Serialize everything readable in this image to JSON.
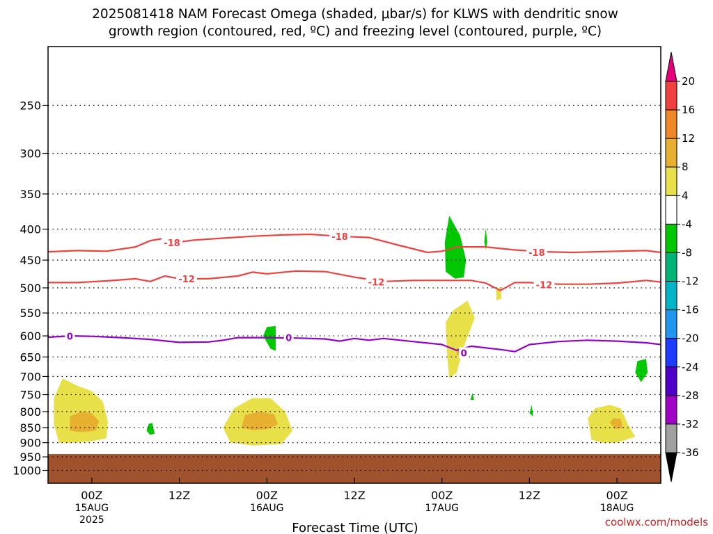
{
  "title_line1": "2025081418 NAM Forecast Omega (shaded, μbar/s) for KLWS with dendritic snow",
  "title_line2": "growth region (contoured, red, ºC) and freezing level (contoured, purple, ºC)",
  "credit": "coolwx.com/models",
  "chart_data": {
    "type": "time-height cross section",
    "xlabel": "Forecast Time (UTC)",
    "x_ticks": [
      {
        "hour": 6,
        "label": "00Z",
        "date": "15AUG",
        "year": "2025"
      },
      {
        "hour": 18,
        "label": "12Z",
        "date": "",
        "year": ""
      },
      {
        "hour": 30,
        "label": "00Z",
        "date": "16AUG",
        "year": ""
      },
      {
        "hour": 42,
        "label": "12Z",
        "date": "",
        "year": ""
      },
      {
        "hour": 54,
        "label": "00Z",
        "date": "17AUG",
        "year": ""
      },
      {
        "hour": 66,
        "label": "12Z",
        "date": "",
        "year": ""
      },
      {
        "hour": 78,
        "label": "00Z",
        "date": "18AUG",
        "year": ""
      }
    ],
    "xlim": [
      0,
      84
    ],
    "y_ticks": [
      250,
      300,
      350,
      400,
      450,
      500,
      550,
      600,
      650,
      700,
      750,
      800,
      850,
      900,
      950,
      1000
    ],
    "ylim": [
      200,
      1050
    ],
    "y_scale": "log pressure (hPa)",
    "ground_level_hpa": 940,
    "colorbar": {
      "unit": "μbar/s",
      "labels": [
        "20",
        "16",
        "12",
        "8",
        "4",
        "-4",
        "-8",
        "-12",
        "-16",
        "-20",
        "-24",
        "-28",
        "-32",
        "-36"
      ],
      "colors": [
        "#e8007a",
        "#f04040",
        "#f08828",
        "#e8b030",
        "#e8e048",
        "#ffffff",
        "#00c800",
        "#00b478",
        "#00b4c8",
        "#1e96f0",
        "#1e3cff",
        "#5000c8",
        "#a000c8",
        "#a0a0a0",
        "#000000"
      ]
    },
    "contours": [
      {
        "name": "-18",
        "kind": "dendritic",
        "color": "#f04040",
        "points": [
          [
            0,
            436
          ],
          [
            4,
            434
          ],
          [
            8,
            435
          ],
          [
            12,
            428
          ],
          [
            14,
            418
          ],
          [
            16,
            414
          ],
          [
            18,
            420
          ],
          [
            20,
            417
          ],
          [
            24,
            414
          ],
          [
            28,
            411
          ],
          [
            32,
            409
          ],
          [
            36,
            408
          ],
          [
            40,
            411
          ],
          [
            44,
            413
          ],
          [
            48,
            425
          ],
          [
            52,
            437
          ],
          [
            54,
            435
          ],
          [
            56,
            428
          ],
          [
            60,
            428
          ],
          [
            64,
            433
          ],
          [
            68,
            436
          ],
          [
            72,
            437
          ],
          [
            78,
            435
          ],
          [
            82,
            434
          ],
          [
            84,
            437
          ]
        ],
        "labels": [
          [
            17,
            421
          ],
          [
            40,
            411
          ],
          [
            67,
            437
          ]
        ]
      },
      {
        "name": "-12",
        "kind": "dendritic",
        "color": "#f04040",
        "points": [
          [
            0,
            490
          ],
          [
            4,
            490
          ],
          [
            8,
            487
          ],
          [
            12,
            483
          ],
          [
            14,
            488
          ],
          [
            16,
            478
          ],
          [
            18,
            483
          ],
          [
            22,
            483
          ],
          [
            26,
            478
          ],
          [
            28,
            471
          ],
          [
            30,
            474
          ],
          [
            34,
            469
          ],
          [
            38,
            470
          ],
          [
            42,
            480
          ],
          [
            46,
            488
          ],
          [
            50,
            486
          ],
          [
            54,
            486
          ],
          [
            58,
            486
          ],
          [
            60,
            491
          ],
          [
            62,
            505
          ],
          [
            64,
            490
          ],
          [
            66,
            490
          ],
          [
            70,
            493
          ],
          [
            74,
            493
          ],
          [
            78,
            491
          ],
          [
            82,
            486
          ],
          [
            84,
            489
          ]
        ],
        "labels": [
          [
            19,
            483
          ],
          [
            45,
            489
          ],
          [
            68,
            494
          ]
        ]
      },
      {
        "name": "0",
        "kind": "freezing",
        "color": "#9400c8",
        "points": [
          [
            0,
            603
          ],
          [
            3,
            600
          ],
          [
            6,
            601
          ],
          [
            10,
            604
          ],
          [
            14,
            608
          ],
          [
            18,
            615
          ],
          [
            22,
            614
          ],
          [
            24,
            610
          ],
          [
            26,
            604
          ],
          [
            30,
            604
          ],
          [
            34,
            605
          ],
          [
            38,
            607
          ],
          [
            40,
            612
          ],
          [
            42,
            606
          ],
          [
            44,
            610
          ],
          [
            46,
            606
          ],
          [
            50,
            613
          ],
          [
            54,
            620
          ],
          [
            56,
            634
          ],
          [
            58,
            624
          ],
          [
            62,
            632
          ],
          [
            64,
            637
          ],
          [
            66,
            620
          ],
          [
            70,
            613
          ],
          [
            74,
            610
          ],
          [
            78,
            612
          ],
          [
            82,
            616
          ],
          [
            84,
            620
          ]
        ],
        "labels": [
          [
            3,
            601
          ],
          [
            33,
            604
          ],
          [
            57,
            640
          ]
        ]
      }
    ],
    "shaded_regions": [
      {
        "value": "4 to 8",
        "color": "#e8e048",
        "points": [
          [
            1.5,
            900
          ],
          [
            0.8,
            840
          ],
          [
            0.8,
            760
          ],
          [
            2,
            705
          ],
          [
            4,
            725
          ],
          [
            6,
            740
          ],
          [
            7.5,
            770
          ],
          [
            8.2,
            830
          ],
          [
            8,
            885
          ],
          [
            6,
            895
          ],
          [
            3.5,
            900
          ]
        ]
      },
      {
        "value": "8 to 12",
        "color": "#e8b030",
        "points": [
          [
            3,
            860
          ],
          [
            3,
            815
          ],
          [
            4.5,
            800
          ],
          [
            6,
            805
          ],
          [
            7,
            830
          ],
          [
            6.5,
            860
          ],
          [
            4.5,
            865
          ]
        ]
      },
      {
        "value": "4 to 8",
        "color": "#e8e048",
        "points": [
          [
            25,
            900
          ],
          [
            24,
            850
          ],
          [
            25.5,
            790
          ],
          [
            28,
            760
          ],
          [
            30.5,
            760
          ],
          [
            32.5,
            800
          ],
          [
            33.5,
            860
          ],
          [
            32,
            905
          ],
          [
            28,
            910
          ]
        ]
      },
      {
        "value": "8 to 12",
        "color": "#e8b030",
        "points": [
          [
            26.5,
            850
          ],
          [
            27,
            810
          ],
          [
            29,
            800
          ],
          [
            31,
            808
          ],
          [
            31.5,
            840
          ],
          [
            30,
            855
          ],
          [
            28,
            858
          ]
        ]
      },
      {
        "value": "4 to 8",
        "color": "#e8e048",
        "points": [
          [
            74.5,
            890
          ],
          [
            74,
            820
          ],
          [
            75,
            790
          ],
          [
            77,
            780
          ],
          [
            78.5,
            790
          ],
          [
            79.5,
            840
          ],
          [
            80.5,
            880
          ],
          [
            78,
            900
          ],
          [
            76,
            900
          ]
        ]
      },
      {
        "value": "8 to 12",
        "color": "#e8b030",
        "points": [
          [
            77,
            835
          ],
          [
            77.5,
            820
          ],
          [
            78.5,
            822
          ],
          [
            78.8,
            850
          ],
          [
            77.8,
            855
          ]
        ]
      },
      {
        "value": "4 to 8",
        "color": "#e8e048",
        "points": [
          [
            55,
            705
          ],
          [
            54.7,
            640
          ],
          [
            54.5,
            570
          ],
          [
            55.5,
            545
          ],
          [
            57.5,
            525
          ],
          [
            58.5,
            560
          ],
          [
            57,
            625
          ],
          [
            56,
            690
          ]
        ]
      },
      {
        "value": "8 to 12",
        "color": "#e8b030",
        "points": [
          [
            56,
            645
          ],
          [
            56,
            630
          ],
          [
            56.8,
            628
          ],
          [
            56.7,
            645
          ]
        ]
      },
      {
        "value": "4 to 8",
        "color": "#e8e048",
        "points": [
          [
            61.5,
            525
          ],
          [
            61.4,
            505
          ],
          [
            62,
            498
          ],
          [
            62.2,
            520
          ]
        ]
      },
      {
        "value": "-4 to -8",
        "color": "#00c800",
        "points": [
          [
            54.5,
            470
          ],
          [
            54.4,
            420
          ],
          [
            55,
            380
          ],
          [
            56.5,
            410
          ],
          [
            57.3,
            450
          ],
          [
            57,
            480
          ],
          [
            55.8,
            483
          ]
        ]
      },
      {
        "value": "-4 to -8",
        "color": "#00c800",
        "points": [
          [
            59.8,
            420
          ],
          [
            60,
            398
          ],
          [
            60.2,
            420
          ],
          [
            60,
            432
          ]
        ]
      },
      {
        "value": "-4 to -8",
        "color": "#00c800",
        "points": [
          [
            29.5,
            600
          ],
          [
            30,
            580
          ],
          [
            31.2,
            578
          ],
          [
            31.2,
            635
          ],
          [
            30.5,
            630
          ]
        ]
      },
      {
        "value": "-4 to -8",
        "color": "#00c800",
        "points": [
          [
            13.5,
            860
          ],
          [
            13.8,
            838
          ],
          [
            14.3,
            835
          ],
          [
            14.6,
            870
          ],
          [
            14,
            874
          ]
        ]
      },
      {
        "value": "-4 to -8",
        "color": "#00c800",
        "points": [
          [
            80.5,
            690
          ],
          [
            80.8,
            660
          ],
          [
            82,
            655
          ],
          [
            82.2,
            690
          ],
          [
            81.3,
            715
          ]
        ]
      },
      {
        "value": "-4 to -8",
        "color": "#00c800",
        "points": [
          [
            57.9,
            765
          ],
          [
            58.2,
            745
          ],
          [
            58.4,
            765
          ]
        ]
      },
      {
        "value": "-4 to -8",
        "color": "#00c800",
        "points": [
          [
            66,
            805
          ],
          [
            66.3,
            780
          ],
          [
            66.5,
            815
          ]
        ]
      }
    ]
  }
}
